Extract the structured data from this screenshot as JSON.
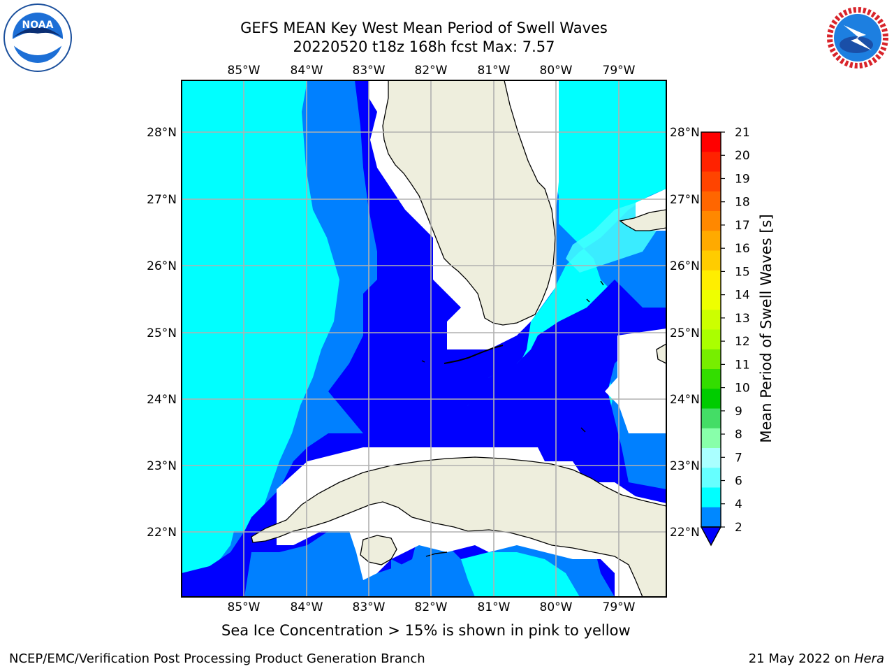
{
  "title": {
    "line1": "GEFS MEAN Key West Mean Period of Swell Waves",
    "line2": "20220520 t18z 168h fcst   Max: 7.57"
  },
  "axes": {
    "lon_labels": [
      "85°W",
      "84°W",
      "83°W",
      "82°W",
      "81°W",
      "80°W",
      "79°W"
    ],
    "lat_labels": [
      "28°N",
      "27°N",
      "26°N",
      "25°N",
      "24°N",
      "23°N",
      "22°N"
    ]
  },
  "colorbar": {
    "label": "Mean Period of Swell Waves [s]",
    "ticks": [
      "21",
      "20",
      "19",
      "18",
      "17",
      "16",
      "15",
      "14",
      "13",
      "12",
      "11",
      "10",
      "9",
      "8",
      "7",
      "6",
      "4",
      "2"
    ],
    "colors_top_to_bottom": [
      "#ff0000",
      "#ff2200",
      "#ff4400",
      "#ff6600",
      "#ff8800",
      "#ffaa00",
      "#ffcc00",
      "#ffee00",
      "#eeff00",
      "#ccff00",
      "#aaff00",
      "#77ee00",
      "#33dd00",
      "#00cc00",
      "#44dd66",
      "#88ffaa",
      "#aaffff",
      "#66ffff",
      "#00ffff",
      "#0088ff",
      "#0000ff"
    ]
  },
  "map_colors": {
    "ocean_2_4": "#0000ff",
    "ocean_4_6": "#0080ff",
    "ocean_6_7": "#00ffff",
    "ocean_7_8": "#44ffff",
    "land": "#eeeedd",
    "masked": "#ffffff"
  },
  "logos": {
    "noaa": "NOAA",
    "nws_text": "NATIONAL WEATHER SERVICE"
  },
  "footer": {
    "note": "Sea Ice Concentration > 15% is shown in pink to yellow",
    "credit_left": "NCEP/EMC/Verification Post Processing Product Generation Branch",
    "credit_date": "21 May 2022 on ",
    "credit_host": "Hera"
  }
}
